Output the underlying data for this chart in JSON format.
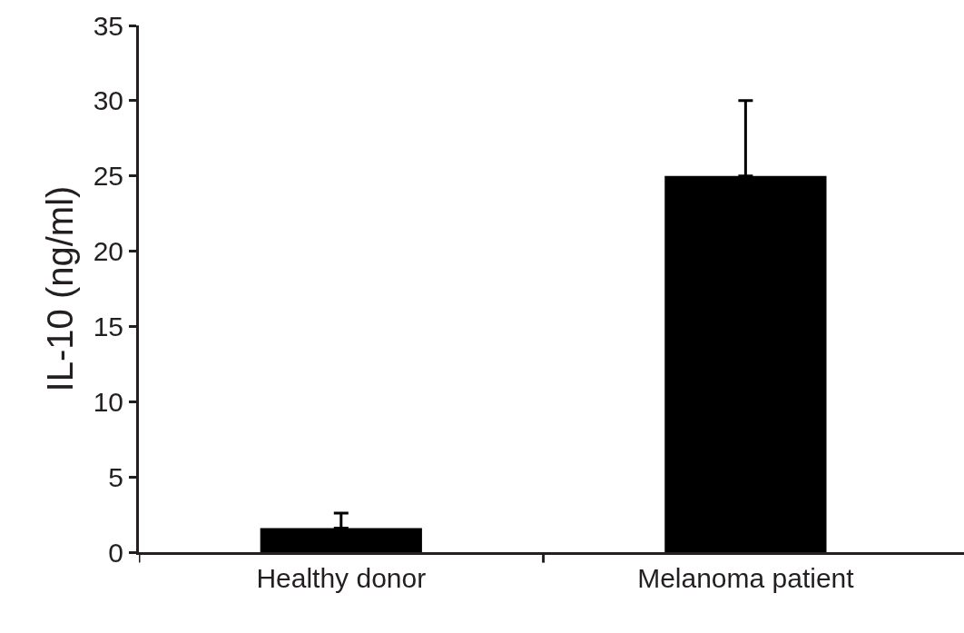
{
  "chart_data": {
    "type": "bar",
    "ylabel": "IL-10 (ng/ml)",
    "categories": [
      "Healthy donor",
      "Melanoma patient"
    ],
    "values": [
      1.6,
      25
    ],
    "errors": [
      [
        1.6,
        2.6
      ],
      [
        25,
        30
      ]
    ],
    "color": "#000000",
    "ylim": [
      0,
      35
    ],
    "yticks": [
      0,
      5,
      10,
      15,
      20,
      25,
      30,
      35
    ],
    "grid": false,
    "legend": false
  }
}
